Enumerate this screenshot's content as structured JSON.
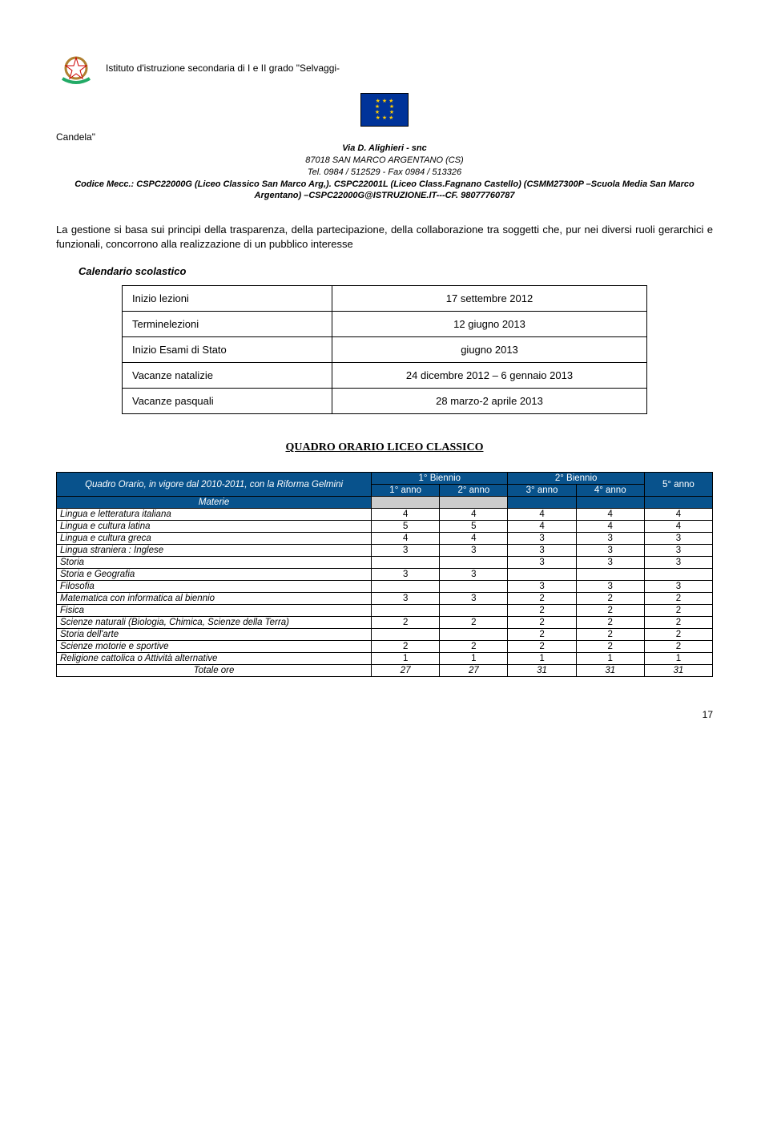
{
  "header": {
    "school_line": "Istituto d'istruzione secondaria di I e II grado \"Selvaggi-",
    "candela": "Candela\"",
    "via": "Via D. Alighieri - snc",
    "city": "87018 SAN MARCO ARGENTANO (CS)",
    "tel": "Tel. 0984 / 512529 - Fax 0984 / 513326",
    "codice": "Codice Mecc.: CSPC22000G (Liceo Classico San Marco Arg,). CSPC22001L (Liceo Class.Fagnano Castello) (CSMM27300P –Scuola Media San Marco Argentano) –CSPC22000G@ISTRUZIONE.IT---CF. 98077760787"
  },
  "body_text": "La gestione si basa sui principi della trasparenza, della partecipazione, della collaborazione tra soggetti che, pur nei diversi ruoli gerarchici e funzionali, concorrono alla realizzazione di un pubblico interesse",
  "calendar_title": "Calendario scolastico",
  "calendar": [
    {
      "label": "Inizio lezioni",
      "value": "17 settembre 2012"
    },
    {
      "label": "Terminelezioni",
      "value": "12 giugno 2013"
    },
    {
      "label": "Inizio Esami di Stato",
      "value": "giugno 2013"
    },
    {
      "label": "Vacanze natalizie",
      "value": "24 dicembre 2012 – 6 gennaio 2013"
    },
    {
      "label": "Vacanze pasquali",
      "value": "28 marzo-2 aprile 2013"
    }
  ],
  "quadro_title": "QUADRO ORARIO LICEO CLASSICO",
  "timetable": {
    "left_header_1": "Quadro Orario, in vigore dal 2010-2011, con la Riforma Gelmini",
    "left_header_2": "Materie",
    "biennio1": "1° Biennio",
    "biennio2": "2° Biennio",
    "anno1": "1° anno",
    "anno2": "2° anno",
    "anno3": "3° anno",
    "anno4": "4° anno",
    "anno5": "5° anno",
    "rows": [
      {
        "s": "Lingua e letteratura italiana",
        "v": [
          "4",
          "4",
          "4",
          "4",
          "4"
        ]
      },
      {
        "s": "Lingua e cultura latina",
        "v": [
          "5",
          "5",
          "4",
          "4",
          "4"
        ]
      },
      {
        "s": "Lingua e cultura greca",
        "v": [
          "4",
          "4",
          "3",
          "3",
          "3"
        ]
      },
      {
        "s": "Lingua straniera : Inglese",
        "v": [
          "3",
          "3",
          "3",
          "3",
          "3"
        ]
      },
      {
        "s": "Storia",
        "v": [
          "",
          "",
          "3",
          "3",
          "3"
        ]
      },
      {
        "s": "Storia e Geografia",
        "v": [
          "3",
          "3",
          "",
          "",
          ""
        ]
      },
      {
        "s": "Filosofia",
        "v": [
          "",
          "",
          "3",
          "3",
          "3"
        ]
      },
      {
        "s": "Matematica con informatica al biennio",
        "v": [
          "3",
          "3",
          "2",
          "2",
          "2"
        ]
      },
      {
        "s": "Fisica",
        "v": [
          "",
          "",
          "2",
          "2",
          "2"
        ]
      },
      {
        "s": "Scienze naturali (Biologia, Chimica, Scienze della Terra)",
        "v": [
          "2",
          "2",
          "2",
          "2",
          "2"
        ]
      },
      {
        "s": "Storia dell'arte",
        "v": [
          "",
          "",
          "2",
          "2",
          "2"
        ]
      },
      {
        "s": "Scienze motorie e sportive",
        "v": [
          "2",
          "2",
          "2",
          "2",
          "2"
        ]
      },
      {
        "s": "Religione cattolica o Attività alternative",
        "v": [
          "1",
          "1",
          "1",
          "1",
          "1"
        ]
      }
    ],
    "totale_label": "Totale ore",
    "totale": [
      "27",
      "27",
      "31",
      "31",
      "31"
    ]
  },
  "page_number": "17"
}
